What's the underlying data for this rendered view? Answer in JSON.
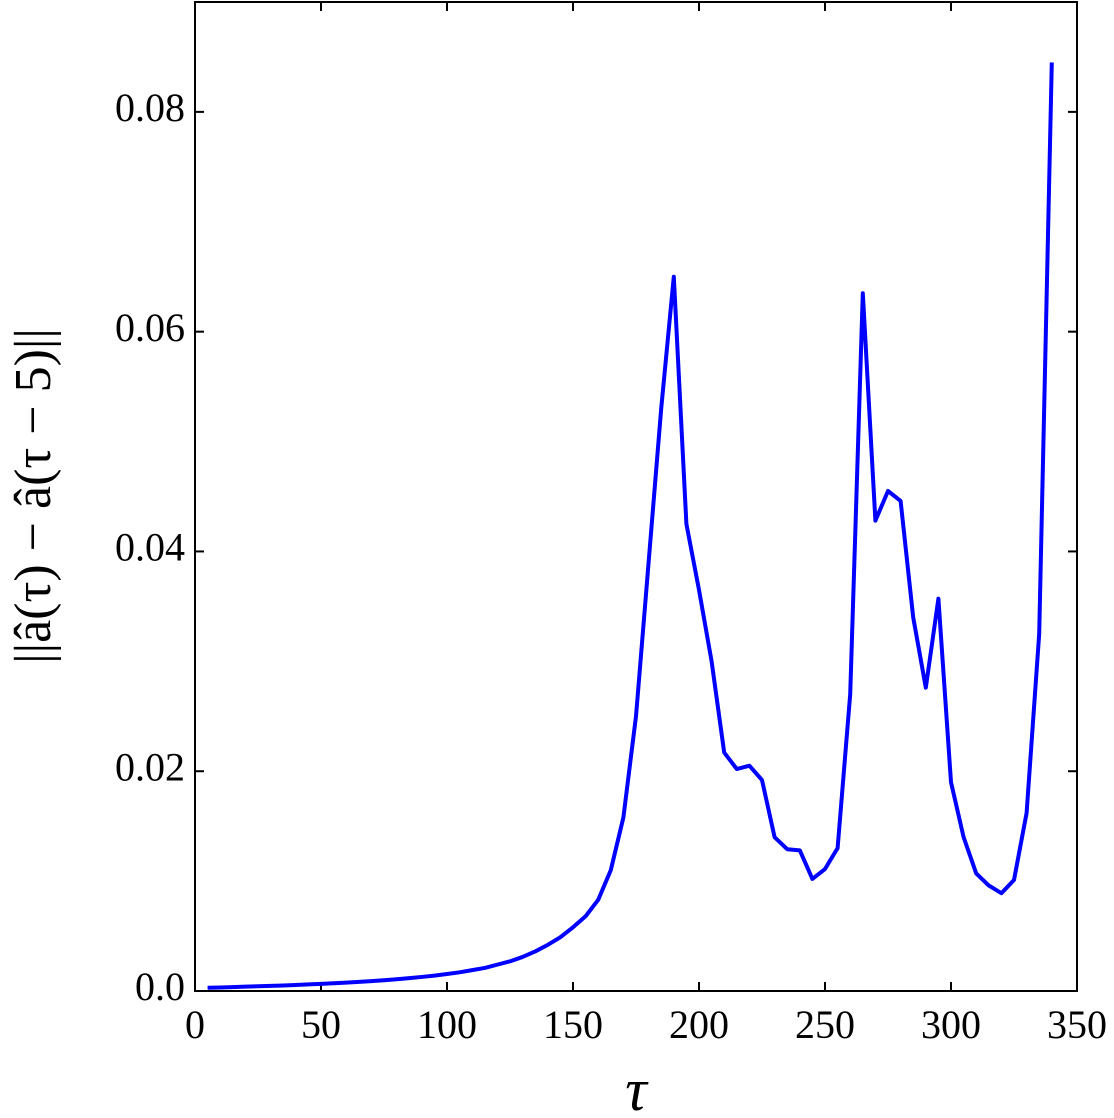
{
  "chart_data": {
    "type": "line",
    "x_label": "τ",
    "y_label": "||â(τ) − â(τ − 5)||",
    "x": [
      5,
      10,
      15,
      20,
      25,
      30,
      35,
      40,
      45,
      50,
      55,
      60,
      65,
      70,
      75,
      80,
      85,
      90,
      95,
      100,
      105,
      110,
      115,
      120,
      125,
      130,
      135,
      140,
      145,
      150,
      155,
      160,
      165,
      170,
      175,
      180,
      185,
      190,
      195,
      200,
      205,
      210,
      215,
      220,
      225,
      230,
      235,
      240,
      245,
      250,
      255,
      260,
      265,
      270,
      275,
      280,
      285,
      290,
      295,
      300,
      305,
      310,
      315,
      320,
      325,
      330,
      335,
      340
    ],
    "series": [
      {
        "color": "#0000ff",
        "values": [
          0.0003,
          0.00032,
          0.00035,
          0.0004,
          0.00043,
          0.00047,
          0.0005,
          0.00055,
          0.0006,
          0.00065,
          0.0007,
          0.00076,
          0.00083,
          0.0009,
          0.00098,
          0.00107,
          0.00117,
          0.00128,
          0.0014,
          0.00155,
          0.0017,
          0.0019,
          0.0021,
          0.0024,
          0.0027,
          0.0031,
          0.0036,
          0.0042,
          0.0049,
          0.0058,
          0.0068,
          0.0083,
          0.011,
          0.0158,
          0.025,
          0.039,
          0.053,
          0.065,
          0.0425,
          0.0365,
          0.03,
          0.0217,
          0.0202,
          0.0205,
          0.0192,
          0.014,
          0.0129,
          0.0128,
          0.0102,
          0.0111,
          0.013,
          0.027,
          0.0635,
          0.0428,
          0.0455,
          0.0446,
          0.034,
          0.0276,
          0.0357,
          0.019,
          0.014,
          0.0107,
          0.0096,
          0.0089,
          0.0101,
          0.0162,
          0.0325,
          0.0845
        ]
      }
    ],
    "xlim": [
      0,
      350
    ],
    "xticks": [
      0,
      50,
      100,
      150,
      200,
      250,
      300,
      350
    ],
    "ylim": [
      0,
      0.09
    ],
    "yticks": [
      {
        "value": 0,
        "label": "0.0"
      },
      0.02,
      0.04,
      0.06,
      0.08
    ],
    "grid": false
  }
}
